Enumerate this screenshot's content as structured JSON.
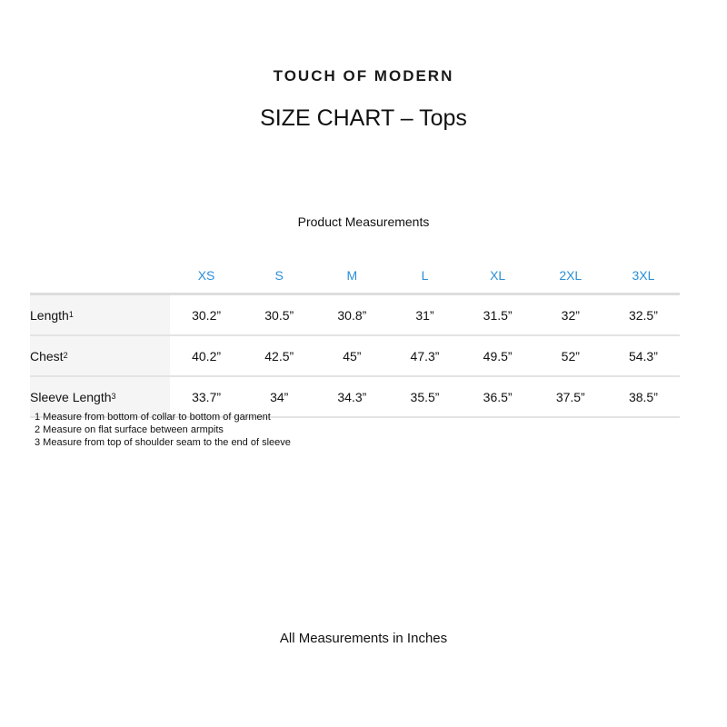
{
  "brand": "TOUCH OF MODERN",
  "title": "SIZE CHART – Tops",
  "subtitle": "Product Measurements",
  "table": {
    "sizes": [
      "XS",
      "S",
      "M",
      "L",
      "XL",
      "2XL",
      "3XL"
    ],
    "rows": [
      {
        "label": "Length",
        "note": "1",
        "values": [
          "30.2”",
          "30.5”",
          "30.8”",
          "31”",
          "31.5”",
          "32”",
          "32.5”"
        ]
      },
      {
        "label": "Chest",
        "note": "2",
        "values": [
          "40.2”",
          "42.5”",
          "45”",
          "47.3”",
          "49.5”",
          "52”",
          "54.3”"
        ]
      },
      {
        "label": "Sleeve Length",
        "note": "3",
        "values": [
          "33.7”",
          "34”",
          "34.3”",
          "35.5”",
          "36.5”",
          "37.5”",
          "38.5”"
        ]
      }
    ]
  },
  "notes": [
    "1 Measure from bottom of collar to bottom of garment",
    "2 Measure on flat surface between armpits",
    "3 Measure from top of shoulder seam to the end of sleeve"
  ],
  "footer": "All Measurements in Inches",
  "colors": {
    "size_header": "#2b8fd6",
    "label_bg": "#f5f5f5"
  }
}
